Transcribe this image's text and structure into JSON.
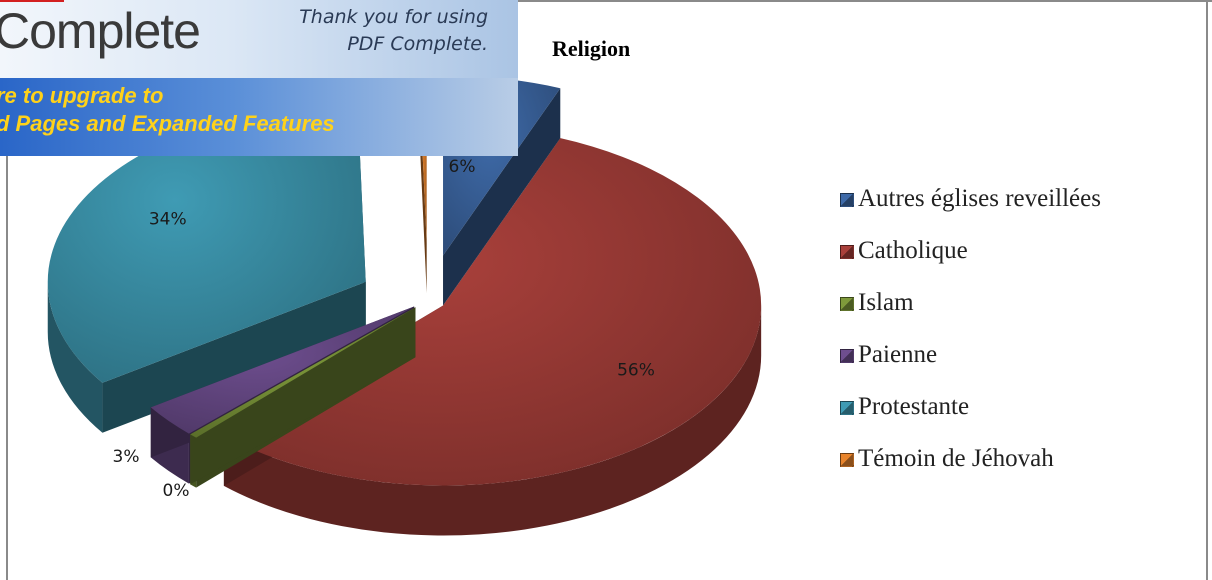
{
  "chart_data": {
    "type": "pie",
    "title": "Religion",
    "categories": [
      "Autres églises reveillées",
      "Catholique",
      "Islam",
      "Paienne",
      "Protestante",
      "Témoin de Jéhovah"
    ],
    "values": [
      6,
      56,
      0,
      3,
      34,
      0
    ],
    "data_labels": [
      "6%",
      "56%",
      "0%",
      "3%",
      "34%",
      ""
    ],
    "colors": [
      "#3e6aa8",
      "#a9403b",
      "#7f9a3b",
      "#6e4e8f",
      "#3f9bb4",
      "#e8842c"
    ],
    "style": "3d-exploded",
    "legend": "right"
  },
  "banner": {
    "brand": "Complete",
    "thanks_line1": "Thank you for using",
    "thanks_line2": "PDF Complete.",
    "upgrade_line1": "re to upgrade to",
    "upgrade_line2": "d Pages and Expanded Features"
  }
}
